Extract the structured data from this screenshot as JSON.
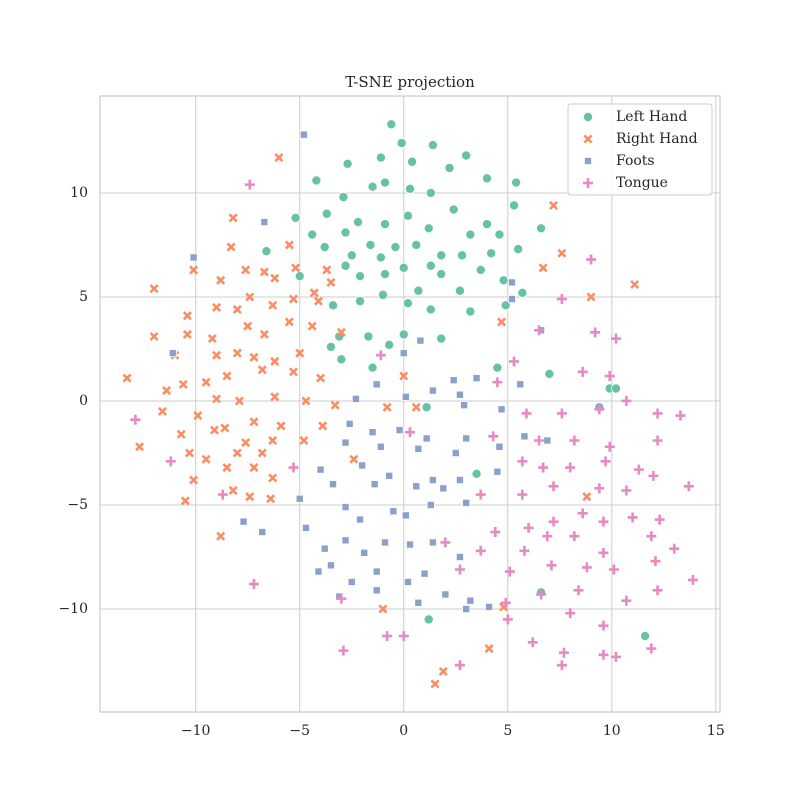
{
  "chart_data": {
    "type": "scatter",
    "title": "T-SNE projection",
    "xlim": [
      -14.6,
      15.2
    ],
    "ylim": [
      -14.95,
      14.66
    ],
    "xticks": [
      {
        "value": -10,
        "label": "−10"
      },
      {
        "value": -5,
        "label": "−5"
      },
      0,
      5,
      10,
      15
    ],
    "yticks": [
      {
        "value": -10,
        "label": "−10"
      },
      {
        "value": -5,
        "label": "−5"
      },
      0,
      5,
      10
    ],
    "grid": true,
    "legend": "upper right",
    "series": [
      {
        "name": "Left Hand",
        "color": "#66c2a5",
        "marker": "circle",
        "x": [
          -0.6,
          -0.1,
          1.4,
          3.0,
          -2.7,
          -1.1,
          0.4,
          -4.2,
          -1.5,
          -0.9,
          0.3,
          1.3,
          2.2,
          4.0,
          5.4,
          -5.2,
          -3.7,
          -2.9,
          -2.2,
          -0.9,
          0.2,
          1.2,
          2.4,
          4.0,
          5.3,
          6.6,
          -4.4,
          -2.8,
          -1.6,
          -0.4,
          0.6,
          1.8,
          3.2,
          4.6,
          -6.6,
          -3.8,
          -2.5,
          -1.1,
          0,
          1.3,
          2.8,
          4.2,
          5.5,
          -5.0,
          -2.8,
          -2.1,
          -0.9,
          0.7,
          1.8,
          2.7,
          3.7,
          4.8,
          5.7,
          -3.4,
          -2.1,
          -1.0,
          0.2,
          1.3,
          3.2,
          4.9,
          -3.1,
          -1.7,
          0,
          1.8,
          -3.5,
          -0.7,
          -3.0,
          -1.5,
          4.5,
          7.0,
          9.9,
          10.2,
          9.4,
          1.1,
          3.5,
          6.6,
          1.2,
          11.6
        ],
        "values": [
          13.3,
          12.4,
          12.3,
          11.8,
          11.4,
          11.7,
          11.5,
          10.6,
          10.3,
          10.5,
          10.2,
          10.0,
          11.2,
          10.7,
          10.5,
          8.8,
          9.0,
          9.8,
          8.6,
          8.5,
          8.9,
          8.3,
          9.2,
          8.5,
          9.4,
          8.3,
          8.0,
          8.1,
          7.5,
          7.4,
          7.5,
          7.0,
          8.0,
          8.0,
          7.2,
          7.4,
          7.0,
          6.9,
          6.4,
          6.5,
          7.0,
          7.1,
          7.3,
          6.0,
          6.5,
          6.0,
          6.1,
          5.3,
          6.1,
          5.3,
          6.3,
          5.8,
          5.2,
          4.6,
          4.8,
          5.1,
          4.7,
          4.4,
          4.3,
          4.6,
          3.1,
          3.1,
          3.2,
          3.0,
          2.6,
          2.7,
          2.0,
          1.6,
          1.6,
          1.3,
          0.6,
          0.6,
          -0.3,
          -0.3,
          -3.5,
          -9.2,
          -10.5,
          -11.3
        ]
      },
      {
        "name": "Right Hand",
        "color": "#fc8d62",
        "marker": "x",
        "x": [
          -6.0,
          -12.0,
          -8.2,
          -8.3,
          -10.1,
          -8.8,
          -7.6,
          -6.7,
          -6.2,
          -5.5,
          -5.2,
          -3.7,
          -3.5,
          -4.3,
          -10.4,
          -9.0,
          -8.0,
          -7.4,
          -6.3,
          -5.3,
          -4.1,
          -12.0,
          -10.4,
          -9.2,
          -7.5,
          -6.7,
          -5.5,
          -4.4,
          -3.0,
          -11.0,
          -9.0,
          -8.0,
          -7.2,
          -6.2,
          -5.0,
          -13.3,
          -10.6,
          -9.5,
          -8.5,
          -6.8,
          -5.3,
          -4.0,
          -11.4,
          -9.0,
          -7.9,
          -6.2,
          -4.7,
          -3.3,
          -11.6,
          -9.9,
          -8.6,
          -7.2,
          -5.9,
          -3.9,
          -10.7,
          -9.1,
          -7.6,
          -6.3,
          -4.8,
          -12.7,
          -10.3,
          -8.0,
          -6.8,
          -2.4,
          -9.5,
          -8.5,
          -7.2,
          -6.3,
          -10.1,
          -8.2,
          -7.4,
          -6.4,
          -10.5,
          -8.8,
          -0.8,
          0.6,
          0,
          4.7,
          7.2,
          7.6,
          9.0,
          11.1,
          6.7,
          8.8,
          4.8,
          4.1,
          1.9,
          1.5,
          -1.0
        ],
        "values": [
          11.7,
          5.4,
          8.8,
          7.4,
          6.3,
          5.8,
          6.3,
          6.2,
          5.9,
          7.5,
          6.4,
          6.3,
          5.7,
          5.2,
          4.1,
          4.5,
          4.4,
          5.0,
          4.6,
          4.9,
          4.8,
          3.1,
          3.2,
          3.0,
          3.6,
          3.2,
          3.8,
          3.6,
          3.3,
          2.2,
          2.2,
          2.3,
          2.1,
          1.9,
          2.3,
          1.1,
          0.8,
          0.9,
          1.2,
          1.5,
          1.4,
          1.1,
          0.5,
          0.1,
          0,
          0.2,
          0,
          -0.2,
          -0.5,
          -0.7,
          -1.3,
          -1.0,
          -1.2,
          -1.2,
          -1.6,
          -1.4,
          -2.0,
          -1.9,
          -1.9,
          -2.2,
          -2.5,
          -2.5,
          -2.5,
          -2.8,
          -2.8,
          -3.2,
          -3.2,
          -3.7,
          -3.8,
          -4.3,
          -4.6,
          -4.7,
          -4.8,
          -6.5,
          -0.3,
          -0.3,
          1.2,
          3.8,
          9.4,
          7.1,
          5.0,
          5.6,
          6.4,
          -4.6,
          -9.9,
          -11.9,
          -13.0,
          -13.6,
          -10.0
        ]
      },
      {
        "name": "Foots",
        "color": "#8da0cb",
        "marker": "square",
        "x": [
          -4.8,
          -6.7,
          -10.1,
          -11.1,
          0,
          0.8,
          5.2,
          5.2,
          6.6,
          -1.3,
          1.4,
          2.4,
          3.5,
          5.6,
          -2.3,
          0.1,
          2.9,
          4.7,
          -2.6,
          -1.5,
          -0.2,
          1.1,
          3.0,
          5.8,
          6.9,
          -2.8,
          -1.1,
          0.7,
          2.5,
          4.6,
          -4.0,
          -2.0,
          -0.7,
          1.4,
          2.7,
          4.5,
          -3.4,
          -1.4,
          0.6,
          1.9,
          -5.0,
          -2.8,
          -0.5,
          1.3,
          3.0,
          -7.7,
          -4.7,
          -2.1,
          0.1,
          -6.8,
          -2.8,
          -0.9,
          1.4,
          -3.8,
          -1.9,
          0.3,
          -3.5,
          -1.3,
          -4.1,
          1.0,
          2.7,
          0.2,
          -2.5,
          -1.3,
          2.0,
          -3.1,
          0.7,
          3.2,
          3.0,
          4.1,
          2.7
        ],
        "values": [
          12.8,
          8.6,
          6.9,
          2.3,
          2.3,
          2.9,
          5.7,
          4.9,
          3.4,
          0.8,
          0.5,
          1.0,
          1.1,
          0.8,
          0.1,
          0.2,
          -0.2,
          -0.4,
          -1.1,
          -1.5,
          -1.4,
          -1.8,
          -1.8,
          -1.7,
          -1.9,
          -2.0,
          -2.2,
          -2.3,
          -2.5,
          -2.2,
          -3.3,
          -3.1,
          -3.6,
          -3.8,
          -3.8,
          -3.4,
          -4.0,
          -4.0,
          -4.1,
          -4.2,
          -4.7,
          -5.1,
          -5.3,
          -5.0,
          -4.9,
          -5.8,
          -6.1,
          -5.7,
          -5.5,
          -6.3,
          -6.7,
          -6.8,
          -6.8,
          -7.1,
          -7.3,
          -6.9,
          -7.9,
          -8.2,
          -8.2,
          -8.3,
          -7.5,
          -8.7,
          -8.7,
          -9.1,
          -9.3,
          -9.4,
          -9.7,
          -9.6,
          -10.0,
          -9.9,
          0.3
        ]
      },
      {
        "name": "Tongue",
        "color": "#e78ac3",
        "marker": "plus",
        "x": [
          -7.4,
          9.0,
          7.6,
          9.2,
          10.2,
          6.5,
          5.3,
          4.5,
          8.6,
          9.9,
          5.9,
          7.6,
          9.4,
          10.7,
          12.2,
          13.3,
          -12.9,
          4.3,
          6.5,
          8.2,
          9.9,
          12.2,
          -11.2,
          5.7,
          6.7,
          8.0,
          9.7,
          11.3,
          -5.3,
          3.7,
          5.7,
          7.2,
          9.4,
          10.7,
          12.0,
          13.7,
          -8.7,
          4.4,
          6.0,
          7.2,
          8.6,
          9.6,
          11.0,
          12.3,
          3.7,
          5.8,
          6.9,
          8.2,
          9.6,
          11.9,
          13.0,
          2.0,
          2.7,
          5.1,
          7.1,
          8.8,
          10.1,
          12.1,
          13.9,
          -7.2,
          -3.0,
          4.9,
          6.6,
          8.4,
          10.7,
          12.2,
          5.0,
          8.0,
          9.6,
          -2.9,
          -0.8,
          0,
          6.2,
          7.7,
          9.6,
          10.2,
          11.9,
          7.6,
          2.7,
          -1.1,
          0.3
        ],
        "values": [
          10.4,
          6.8,
          4.9,
          3.3,
          3.0,
          3.4,
          1.9,
          0.9,
          1.4,
          1.2,
          -0.6,
          -0.6,
          -0.4,
          0,
          -0.6,
          -0.7,
          -0.9,
          -1.7,
          -1.9,
          -1.9,
          -2.2,
          -1.9,
          -2.9,
          -2.9,
          -3.2,
          -3.2,
          -2.9,
          -3.3,
          -3.2,
          -4.5,
          -4.5,
          -4.1,
          -4.2,
          -4.3,
          -3.6,
          -4.1,
          -4.5,
          -6.3,
          -6.1,
          -5.8,
          -5.4,
          -5.8,
          -5.6,
          -5.7,
          -7.2,
          -7.2,
          -6.5,
          -6.5,
          -7.3,
          -6.5,
          -7.1,
          -6.8,
          -8.1,
          -8.2,
          -7.9,
          -8.0,
          -8.1,
          -7.7,
          -8.6,
          -8.8,
          -9.5,
          -9.7,
          -9.3,
          -9.1,
          -9.6,
          -9.1,
          -10.5,
          -10.2,
          -10.8,
          -12.0,
          -11.3,
          -11.3,
          -11.6,
          -12.1,
          -12.2,
          -12.3,
          -11.9,
          -12.7,
          -12.7,
          2.2,
          -1.5
        ]
      }
    ]
  }
}
